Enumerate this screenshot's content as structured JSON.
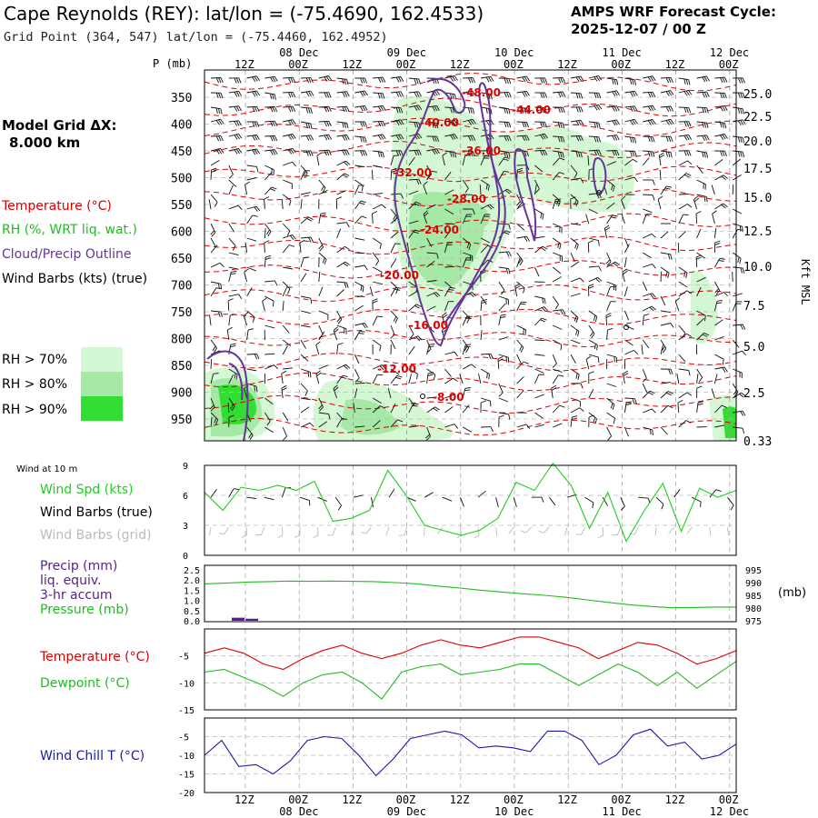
{
  "header": {
    "title": "Cape Reynolds (REY):  lat/lon = (-75.4690, 162.4533)",
    "grid_point": "Grid Point (364, 547) lat/lon = (-75.4460, 162.4952)",
    "cycle_line1": "AMPS WRF Forecast Cycle:",
    "cycle_line2": "2025-12-07 / 00  Z"
  },
  "left_panel": {
    "grid_label": "Model Grid ΔX:",
    "grid_value": "8.000 km",
    "legend_temp": "Temperature (°C)",
    "legend_rh": "RH (%, WRT liq. wat.)",
    "legend_cloud": "Cloud/Precip Outline",
    "legend_wind": "Wind Barbs (kts) (true)",
    "rh70": "RH > 70%",
    "rh80": "RH > 80%",
    "rh90": "RH > 90%"
  },
  "colors": {
    "temp": "#dd0000",
    "rh_text": "#22bb22",
    "cloud": "#663399",
    "rh70": "#d4f7d4",
    "rh80": "#a6e8a6",
    "rh90": "#33dd33",
    "wind_spd": "#22cc22",
    "pressure": "#22bb22",
    "precip": "#552288",
    "windchill": "#1a1aa8",
    "grid_barbs": "#bbbbbb"
  },
  "time_axis": {
    "top_days": [
      "08 Dec",
      "09 Dec",
      "10 Dec",
      "11 Dec",
      "12 Dec"
    ],
    "hour_labels": [
      "12Z",
      "00Z",
      "12Z",
      "00Z",
      "12Z",
      "00Z",
      "12Z",
      "00Z",
      "12Z",
      "00Z"
    ],
    "bottom_days": [
      "08 Dec",
      "09 Dec",
      "10 Dec",
      "11 Dec",
      "12 Dec"
    ]
  },
  "chart_data": [
    {
      "type": "heatmap",
      "panel": "cross_section",
      "ylabel_left": "P (mb)",
      "ylabel_right": "Kft MSL",
      "pressure_ticks": [
        350,
        400,
        450,
        500,
        550,
        600,
        650,
        700,
        750,
        800,
        850,
        900,
        950
      ],
      "height_ticks": [
        "25.0",
        "22.5",
        "20.0",
        "17.5",
        "15.0",
        "12.5",
        "10.0",
        "7.5",
        "5.0",
        "2.5",
        "0.33"
      ],
      "temperature_labels": [
        "-48.00",
        "-44.00",
        "-40.00",
        "-36.00",
        "-32.00",
        "-28.00",
        "-24.00",
        "-20.00",
        "-16.00",
        "-12.00",
        "-8.00"
      ]
    },
    {
      "type": "line",
      "panel": "wind10m",
      "title": "Wind at 10 m",
      "series": [
        {
          "name": "Wind Spd (kts)",
          "values": [
            6.3,
            4.5,
            6.8,
            6.5,
            7.0,
            6.5,
            7.4,
            3.4,
            3.7,
            4.5,
            8.5,
            6.0,
            3.0,
            2.5,
            2.0,
            2.5,
            3.7,
            7.3,
            6.5,
            9.2,
            7.0,
            2.7,
            6.3,
            1.4,
            4.5,
            7.2,
            2.4,
            6.7,
            5.8,
            6.5
          ]
        },
        {
          "name": "Wind Barbs (true)",
          "values": []
        },
        {
          "name": "Wind Barbs (grid)",
          "values": []
        }
      ],
      "ylim": [
        0,
        9
      ],
      "yticks": [
        0,
        3,
        6,
        9
      ]
    },
    {
      "type": "line",
      "panel": "precip_pressure",
      "series": [
        {
          "name": "Precip (mm)",
          "name2": "liq. equiv.",
          "name3": "3-hr accum",
          "values": [
            0.15,
            0.1
          ]
        },
        {
          "name": "Pressure (mb)",
          "values": [
            989.5,
            989.8,
            990.2,
            990.4,
            990.6,
            990.5,
            990.6,
            990.5,
            990.4,
            990.0,
            989.5,
            988.6,
            987.9,
            987.0,
            986.3,
            985.6,
            985.0,
            984.2,
            983.2,
            982.2,
            981.3,
            980.6,
            980.1,
            980.2,
            980.4,
            980.4
          ]
        }
      ],
      "ylim_left": [
        0.0,
        2.5
      ],
      "yticks_left": [
        "2.5",
        "2.0",
        "1.5",
        "1.0",
        "0.5",
        "0.0"
      ],
      "ylim_right": [
        975,
        995
      ],
      "yticks_right": [
        "995",
        "990",
        "985",
        "980",
        "975"
      ],
      "right_label": "(mb)"
    },
    {
      "type": "line",
      "panel": "temp_dew",
      "series": [
        {
          "name": "Temperature (°C)",
          "values": [
            -4.5,
            -3.5,
            -4.5,
            -6.5,
            -7.5,
            -5.5,
            -4.0,
            -3.0,
            -4.5,
            -5.5,
            -4.5,
            -3.0,
            -2.0,
            -3.0,
            -3.5,
            -2.5,
            -1.5,
            -1.5,
            -2.5,
            -3.5,
            -5.5,
            -4.0,
            -2.5,
            -3.0,
            -4.5,
            -6.5,
            -5.5,
            -4.0
          ]
        },
        {
          "name": "Dewpoint (°C)",
          "values": [
            -8.0,
            -7.5,
            -9.0,
            -10.5,
            -12.5,
            -10.0,
            -8.5,
            -8.0,
            -10.0,
            -13.0,
            -8.0,
            -7.0,
            -6.5,
            -8.5,
            -8.0,
            -7.5,
            -6.5,
            -6.5,
            -8.5,
            -10.5,
            -8.5,
            -6.5,
            -8.0,
            -10.5,
            -8.0,
            -11.0,
            -8.5,
            -6.0
          ]
        }
      ],
      "ylim": [
        -15,
        0
      ],
      "yticks": [
        -5,
        -10,
        -15
      ]
    },
    {
      "type": "line",
      "panel": "windchill",
      "series": [
        {
          "name": "Wind Chill T (°C)",
          "values": [
            -10.0,
            -6.0,
            -13.0,
            -12.5,
            -15.0,
            -11.5,
            -6.0,
            -5.0,
            -5.5,
            -10.0,
            -15.5,
            -11.0,
            -5.5,
            -4.5,
            -3.5,
            -4.5,
            -8.0,
            -7.5,
            -8.0,
            -9.0,
            -3.5,
            -3.5,
            -6.0,
            -12.5,
            -10.0,
            -4.5,
            -3.0,
            -7.5,
            -6.5,
            -11.0,
            -10.0,
            -7.0
          ]
        }
      ],
      "ylim": [
        -20,
        0
      ],
      "yticks": [
        -5,
        -10,
        -15,
        -20
      ]
    }
  ]
}
